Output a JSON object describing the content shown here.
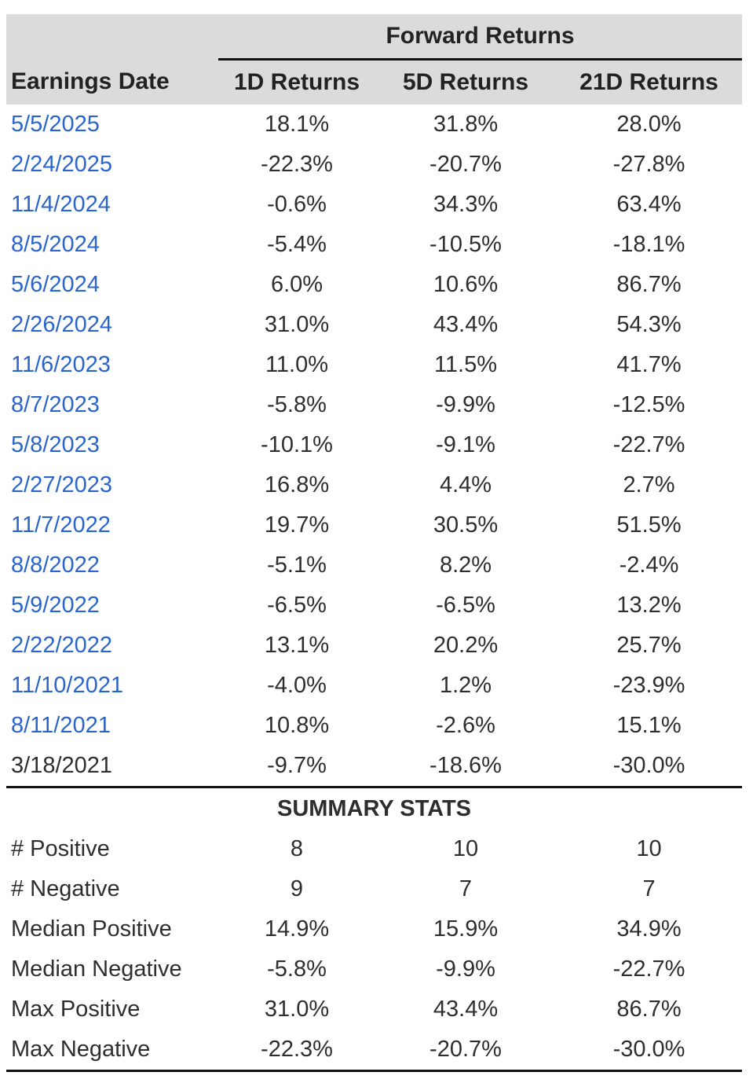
{
  "table": {
    "title": "Forward Returns",
    "columns": [
      "Earnings Date",
      "1D Returns",
      "5D Returns",
      "21D Returns"
    ],
    "rows": [
      {
        "date": "5/5/2025",
        "r1d": "18.1%",
        "r5d": "31.8%",
        "r21d": "28.0%",
        "is_link": true
      },
      {
        "date": "2/24/2025",
        "r1d": "-22.3%",
        "r5d": "-20.7%",
        "r21d": "-27.8%",
        "is_link": true
      },
      {
        "date": "11/4/2024",
        "r1d": "-0.6%",
        "r5d": "34.3%",
        "r21d": "63.4%",
        "is_link": true
      },
      {
        "date": "8/5/2024",
        "r1d": "-5.4%",
        "r5d": "-10.5%",
        "r21d": "-18.1%",
        "is_link": true
      },
      {
        "date": "5/6/2024",
        "r1d": "6.0%",
        "r5d": "10.6%",
        "r21d": "86.7%",
        "is_link": true
      },
      {
        "date": "2/26/2024",
        "r1d": "31.0%",
        "r5d": "43.4%",
        "r21d": "54.3%",
        "is_link": true
      },
      {
        "date": "11/6/2023",
        "r1d": "11.0%",
        "r5d": "11.5%",
        "r21d": "41.7%",
        "is_link": true
      },
      {
        "date": "8/7/2023",
        "r1d": "-5.8%",
        "r5d": "-9.9%",
        "r21d": "-12.5%",
        "is_link": true
      },
      {
        "date": "5/8/2023",
        "r1d": "-10.1%",
        "r5d": "-9.1%",
        "r21d": "-22.7%",
        "is_link": true
      },
      {
        "date": "2/27/2023",
        "r1d": "16.8%",
        "r5d": "4.4%",
        "r21d": "2.7%",
        "is_link": true
      },
      {
        "date": "11/7/2022",
        "r1d": "19.7%",
        "r5d": "30.5%",
        "r21d": "51.5%",
        "is_link": true
      },
      {
        "date": "8/8/2022",
        "r1d": "-5.1%",
        "r5d": "8.2%",
        "r21d": "-2.4%",
        "is_link": true
      },
      {
        "date": "5/9/2022",
        "r1d": "-6.5%",
        "r5d": "-6.5%",
        "r21d": "13.2%",
        "is_link": true
      },
      {
        "date": "2/22/2022",
        "r1d": "13.1%",
        "r5d": "20.2%",
        "r21d": "25.7%",
        "is_link": true
      },
      {
        "date": "11/10/2021",
        "r1d": "-4.0%",
        "r5d": "1.2%",
        "r21d": "-23.9%",
        "is_link": true
      },
      {
        "date": "8/11/2021",
        "r1d": "10.8%",
        "r5d": "-2.6%",
        "r21d": "15.1%",
        "is_link": true
      },
      {
        "date": "3/18/2021",
        "r1d": "-9.7%",
        "r5d": "-18.6%",
        "r21d": "-30.0%",
        "is_link": false
      }
    ],
    "summary_heading": "SUMMARY STATS",
    "summary_rows": [
      {
        "label": "# Positive",
        "r1d": "8",
        "r5d": "10",
        "r21d": "10"
      },
      {
        "label": "# Negative",
        "r1d": "9",
        "r5d": "7",
        "r21d": "7"
      },
      {
        "label": "Median Positive",
        "r1d": "14.9%",
        "r5d": "15.9%",
        "r21d": "34.9%"
      },
      {
        "label": "Median Negative",
        "r1d": "-5.8%",
        "r5d": "-9.9%",
        "r21d": "-22.7%"
      },
      {
        "label": "Max Positive",
        "r1d": "31.0%",
        "r5d": "43.4%",
        "r21d": "86.7%"
      },
      {
        "label": "Max Negative",
        "r1d": "-22.3%",
        "r5d": "-20.7%",
        "r21d": "-30.0%"
      }
    ],
    "colors": {
      "header_bg": "#dbdbdb",
      "link_blue": "#2b65cb",
      "text": "#2e2e2e",
      "rule": "#111111"
    }
  },
  "chart_data": {
    "type": "table",
    "title": "Forward Returns",
    "columns": [
      "Earnings Date",
      "1D Returns",
      "5D Returns",
      "21D Returns"
    ],
    "units": "percent",
    "rows": [
      [
        "5/5/2025",
        18.1,
        31.8,
        28.0
      ],
      [
        "2/24/2025",
        -22.3,
        -20.7,
        -27.8
      ],
      [
        "11/4/2024",
        -0.6,
        34.3,
        63.4
      ],
      [
        "8/5/2024",
        -5.4,
        -10.5,
        -18.1
      ],
      [
        "5/6/2024",
        6.0,
        10.6,
        86.7
      ],
      [
        "2/26/2024",
        31.0,
        43.4,
        54.3
      ],
      [
        "11/6/2023",
        11.0,
        11.5,
        41.7
      ],
      [
        "8/7/2023",
        -5.8,
        -9.9,
        -12.5
      ],
      [
        "5/8/2023",
        -10.1,
        -9.1,
        -22.7
      ],
      [
        "2/27/2023",
        16.8,
        4.4,
        2.7
      ],
      [
        "11/7/2022",
        19.7,
        30.5,
        51.5
      ],
      [
        "8/8/2022",
        -5.1,
        8.2,
        -2.4
      ],
      [
        "5/9/2022",
        -6.5,
        -6.5,
        13.2
      ],
      [
        "2/22/2022",
        13.1,
        20.2,
        25.7
      ],
      [
        "11/10/2021",
        -4.0,
        1.2,
        -23.9
      ],
      [
        "8/11/2021",
        10.8,
        -2.6,
        15.1
      ],
      [
        "3/18/2021",
        -9.7,
        -18.6,
        -30.0
      ]
    ],
    "summary": {
      "# Positive": [
        8,
        10,
        10
      ],
      "# Negative": [
        9,
        7,
        7
      ],
      "Median Positive": [
        14.9,
        15.9,
        34.9
      ],
      "Median Negative": [
        -5.8,
        -9.9,
        -22.7
      ],
      "Max Positive": [
        31.0,
        43.4,
        86.7
      ],
      "Max Negative": [
        -22.3,
        -20.7,
        -30.0
      ]
    }
  }
}
